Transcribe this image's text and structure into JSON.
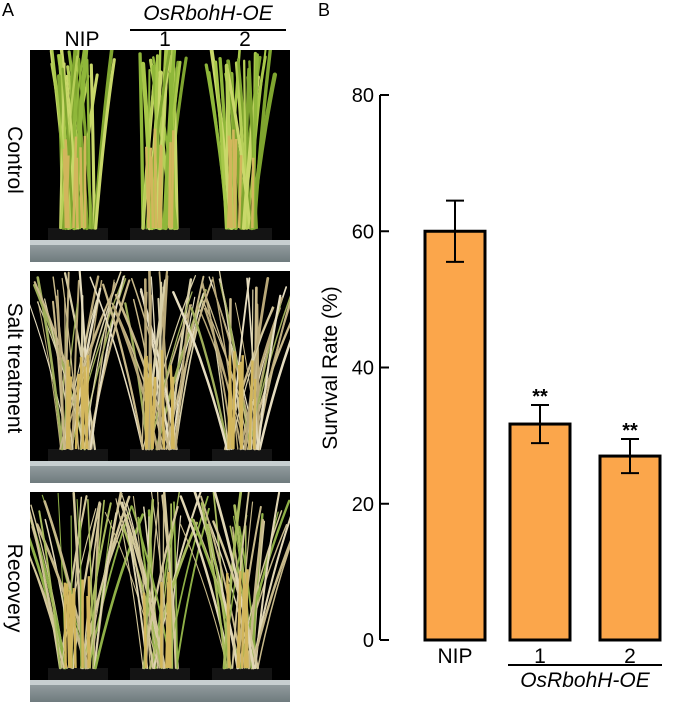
{
  "panel_a": {
    "letter": "A",
    "col_labels": [
      "NIP",
      "1",
      "2"
    ],
    "group_label": "OsRbohH-OE",
    "rows": [
      {
        "label": "Control",
        "condition": "healthy"
      },
      {
        "label": "Salt treatment",
        "condition": "wilted"
      },
      {
        "label": "Recovery",
        "condition": "recovering"
      }
    ]
  },
  "panel_b": {
    "letter": "B"
  },
  "chart_data": {
    "type": "bar",
    "categories": [
      "NIP",
      "1",
      "2"
    ],
    "values": [
      60,
      31.7,
      27
    ],
    "errors": [
      4.5,
      2.8,
      2.5
    ],
    "significance": [
      "",
      "**",
      "**"
    ],
    "group_label": "OsRbohH-OE",
    "ylabel": "Survival Rate (%)",
    "xlabel": "",
    "ylim": [
      0,
      80
    ],
    "yticks": [
      0,
      20,
      40,
      60,
      80
    ],
    "grid": false,
    "bar_color": "#fba64b",
    "bar_edge": "#000000"
  }
}
